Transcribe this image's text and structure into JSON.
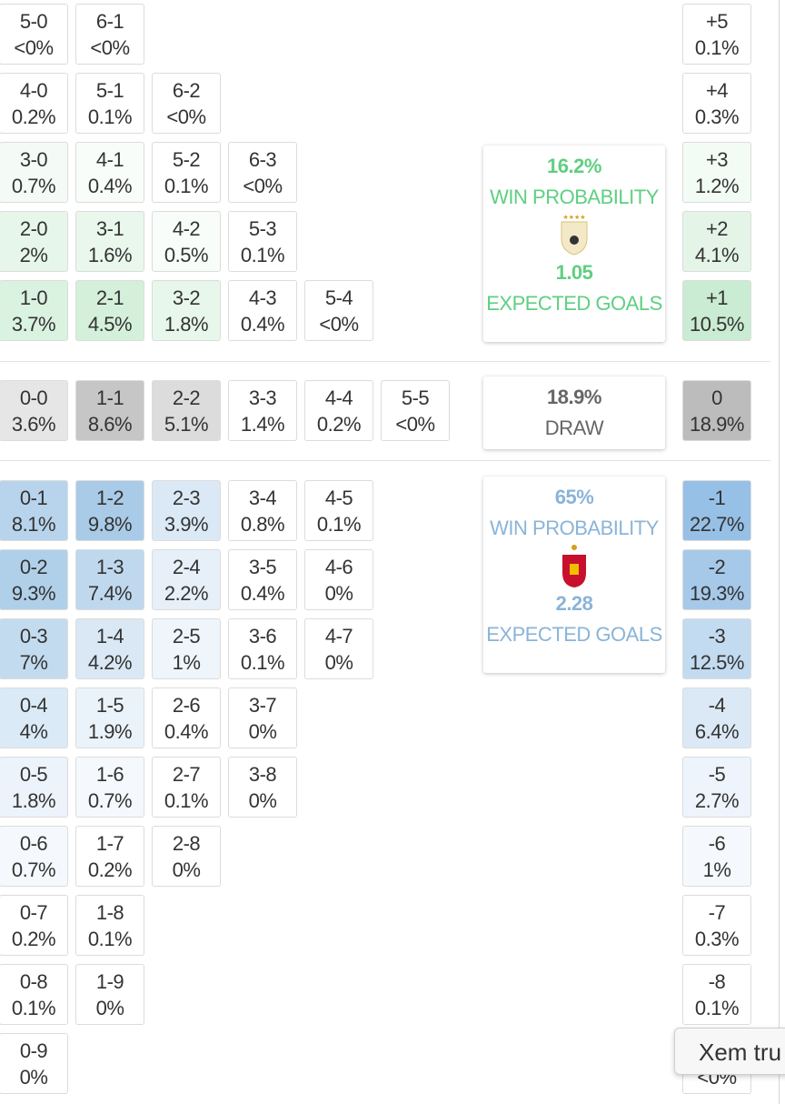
{
  "home_rows": [
    {
      "cells": [
        {
          "score": "5-0",
          "prob": "<0%"
        },
        {
          "score": "6-1",
          "prob": "<0%"
        }
      ],
      "total": {
        "label": "+5",
        "prob": "0.1%"
      }
    },
    {
      "cells": [
        {
          "score": "4-0",
          "prob": "0.2%"
        },
        {
          "score": "5-1",
          "prob": "0.1%"
        },
        {
          "score": "6-2",
          "prob": "<0%"
        }
      ],
      "total": {
        "label": "+4",
        "prob": "0.3%"
      }
    },
    {
      "cells": [
        {
          "score": "3-0",
          "prob": "0.7%",
          "bg": "#f4fbf6"
        },
        {
          "score": "4-1",
          "prob": "0.4%",
          "bg": "#f8fdf9"
        },
        {
          "score": "5-2",
          "prob": "0.1%"
        },
        {
          "score": "6-3",
          "prob": "<0%"
        }
      ],
      "total": {
        "label": "+3",
        "prob": "1.2%",
        "bg": "#f3fbf5"
      }
    },
    {
      "cells": [
        {
          "score": "2-0",
          "prob": "2%",
          "bg": "#e6f6ea"
        },
        {
          "score": "3-1",
          "prob": "1.6%",
          "bg": "#e9f7ec"
        },
        {
          "score": "4-2",
          "prob": "0.5%",
          "bg": "#f8fdf9"
        },
        {
          "score": "5-3",
          "prob": "0.1%"
        }
      ],
      "total": {
        "label": "+2",
        "prob": "4.1%",
        "bg": "#e4f5e8"
      }
    },
    {
      "cells": [
        {
          "score": "1-0",
          "prob": "3.7%",
          "bg": "#daf2e0"
        },
        {
          "score": "2-1",
          "prob": "4.5%",
          "bg": "#d4f0da"
        },
        {
          "score": "3-2",
          "prob": "1.8%",
          "bg": "#e8f7eb"
        },
        {
          "score": "4-3",
          "prob": "0.4%"
        },
        {
          "score": "5-4",
          "prob": "<0%"
        }
      ],
      "total": {
        "label": "+1",
        "prob": "10.5%",
        "bg": "#c9ecd2"
      }
    }
  ],
  "draw_rows": [
    {
      "cells": [
        {
          "score": "0-0",
          "prob": "3.6%",
          "bg": "#e6e6e6"
        },
        {
          "score": "1-1",
          "prob": "8.6%",
          "bg": "#c6c6c6"
        },
        {
          "score": "2-2",
          "prob": "5.1%",
          "bg": "#dcdcdc"
        },
        {
          "score": "3-3",
          "prob": "1.4%"
        },
        {
          "score": "4-4",
          "prob": "0.2%"
        },
        {
          "score": "5-5",
          "prob": "<0%"
        }
      ],
      "total": {
        "label": "0",
        "prob": "18.9%",
        "bg": "#bcbcbc"
      }
    }
  ],
  "away_rows": [
    {
      "cells": [
        {
          "score": "0-1",
          "prob": "8.1%",
          "bg": "#b8d4ec"
        },
        {
          "score": "1-2",
          "prob": "9.8%",
          "bg": "#a9cbe8"
        },
        {
          "score": "2-3",
          "prob": "3.9%",
          "bg": "#dbe9f6"
        },
        {
          "score": "3-4",
          "prob": "0.8%"
        },
        {
          "score": "4-5",
          "prob": "0.1%"
        }
      ],
      "total": {
        "label": "-1",
        "prob": "22.7%",
        "bg": "#97c0e6"
      }
    },
    {
      "cells": [
        {
          "score": "0-2",
          "prob": "9.3%",
          "bg": "#b0d0ea"
        },
        {
          "score": "1-3",
          "prob": "7.4%",
          "bg": "#bfd8ee"
        },
        {
          "score": "2-4",
          "prob": "2.2%",
          "bg": "#e7f0f9"
        },
        {
          "score": "3-5",
          "prob": "0.4%"
        },
        {
          "score": "4-6",
          "prob": "0%"
        }
      ],
      "total": {
        "label": "-2",
        "prob": "19.3%",
        "bg": "#a6c9e9"
      }
    },
    {
      "cells": [
        {
          "score": "0-3",
          "prob": "7%",
          "bg": "#c3dbef"
        },
        {
          "score": "1-4",
          "prob": "4.2%",
          "bg": "#daE8f5"
        },
        {
          "score": "2-5",
          "prob": "1%",
          "bg": "#eef5fb"
        },
        {
          "score": "3-6",
          "prob": "0.1%"
        },
        {
          "score": "4-7",
          "prob": "0%"
        }
      ],
      "total": {
        "label": "-3",
        "prob": "12.5%",
        "bg": "#c3dbf0"
      }
    },
    {
      "cells": [
        {
          "score": "0-4",
          "prob": "4%",
          "bg": "#daeaf6"
        },
        {
          "score": "1-5",
          "prob": "1.9%",
          "bg": "#ebf3fa"
        },
        {
          "score": "2-6",
          "prob": "0.4%"
        },
        {
          "score": "3-7",
          "prob": "0%"
        }
      ],
      "total": {
        "label": "-4",
        "prob": "6.4%",
        "bg": "#dbe9f6"
      }
    },
    {
      "cells": [
        {
          "score": "0-5",
          "prob": "1.8%",
          "bg": "#ecf3fa"
        },
        {
          "score": "1-6",
          "prob": "0.7%",
          "bg": "#f5f9fd"
        },
        {
          "score": "2-7",
          "prob": "0.1%"
        },
        {
          "score": "3-8",
          "prob": "0%"
        }
      ],
      "total": {
        "label": "-5",
        "prob": "2.7%",
        "bg": "#edf4fb"
      }
    },
    {
      "cells": [
        {
          "score": "0-6",
          "prob": "0.7%",
          "bg": "#f5f9fd"
        },
        {
          "score": "1-7",
          "prob": "0.2%"
        },
        {
          "score": "2-8",
          "prob": "0%"
        }
      ],
      "total": {
        "label": "-6",
        "prob": "1%",
        "bg": "#f5f9fd"
      }
    },
    {
      "cells": [
        {
          "score": "0-7",
          "prob": "0.2%"
        },
        {
          "score": "1-8",
          "prob": "0.1%"
        }
      ],
      "total": {
        "label": "-7",
        "prob": "0.3%"
      }
    },
    {
      "cells": [
        {
          "score": "0-8",
          "prob": "0.1%"
        },
        {
          "score": "1-9",
          "prob": "0%"
        }
      ],
      "total": {
        "label": "-8",
        "prob": "0.1%"
      }
    },
    {
      "cells": [
        {
          "score": "0-9",
          "prob": "0%"
        }
      ],
      "total": {
        "prob": "<0%"
      }
    }
  ],
  "home_card": {
    "win_prob": "16.2%",
    "win_label": "WIN PROBABILITY",
    "xg": "1.05",
    "xg_label": "EXPECTED GOALS"
  },
  "draw_card": {
    "prob": "18.9%",
    "label": "DRAW"
  },
  "away_card": {
    "win_prob": "65%",
    "win_label": "WIN PROBABILITY",
    "xg": "2.28",
    "xg_label": "EXPECTED GOALS"
  },
  "tooltip": "Xem tru"
}
